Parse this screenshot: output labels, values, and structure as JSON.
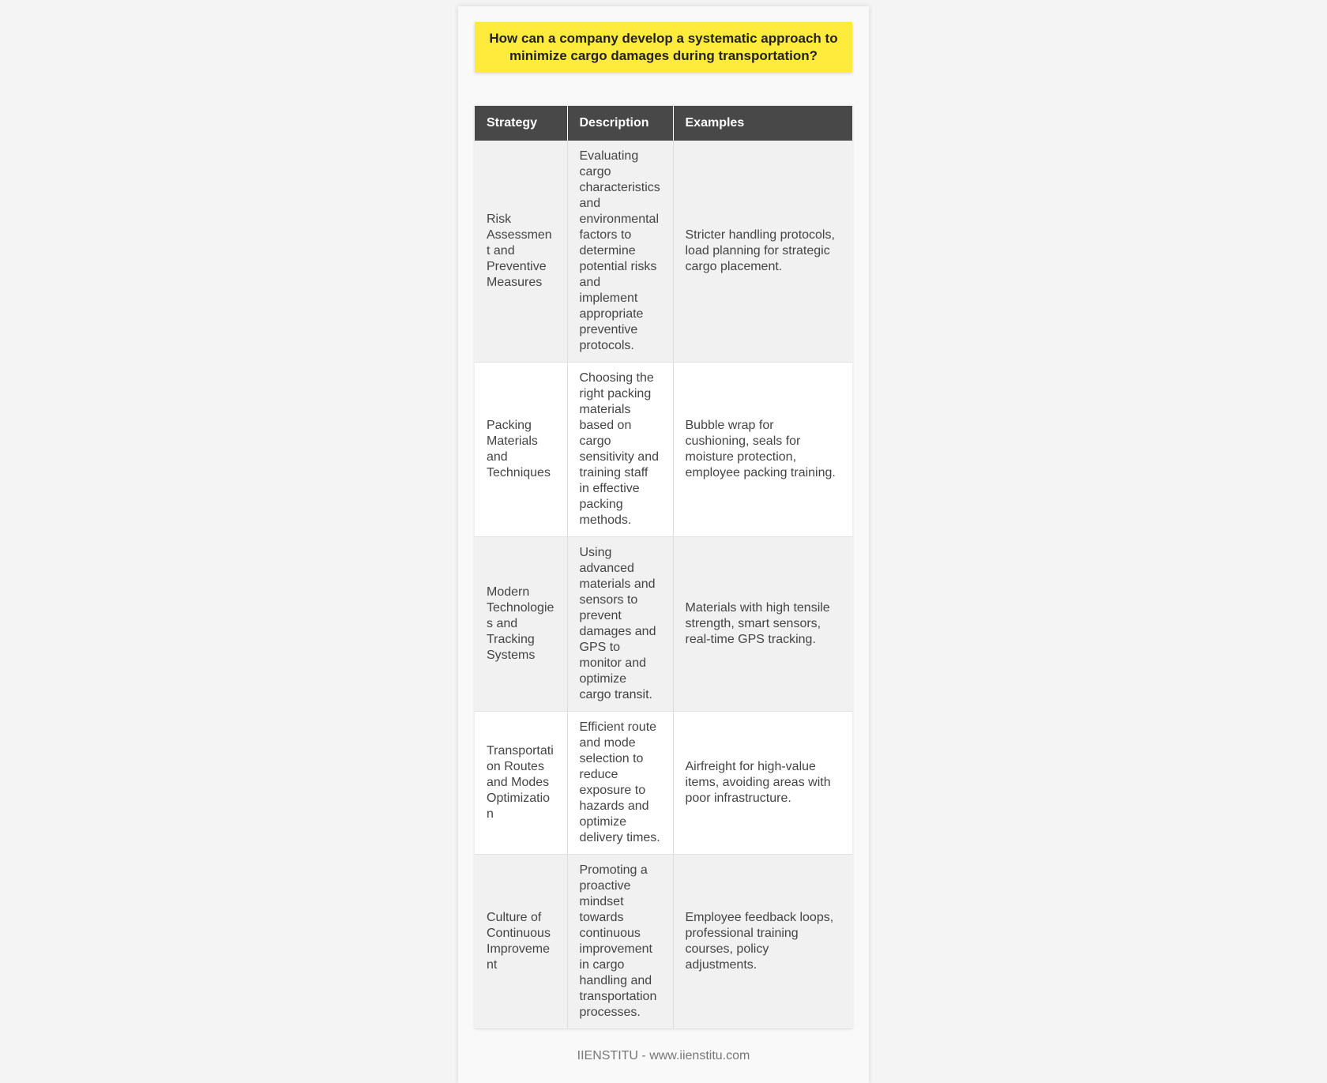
{
  "title": "How can a company develop a systematic approach to minimize cargo damages during transportation?",
  "table": {
    "headers": [
      "Strategy",
      "Description",
      "Examples"
    ],
    "rows": [
      {
        "strategy": "Risk Assessment and Preventive Measures",
        "description": "Evaluating cargo characteristics and environmental factors to determine potential risks and implement appropriate preventive protocols.",
        "examples": "Stricter handling protocols, load planning for strategic cargo placement."
      },
      {
        "strategy": "Packing Materials and Techniques",
        "description": "Choosing the right packing materials based on cargo sensitivity and training staff in effective packing methods.",
        "examples": "Bubble wrap for cushioning, seals for moisture protection, employee packing training."
      },
      {
        "strategy": "Modern Technologies and Tracking Systems",
        "description": "Using advanced materials and sensors to prevent damages and GPS to monitor and optimize cargo transit.",
        "examples": "Materials with high tensile strength, smart sensors, real-time GPS tracking."
      },
      {
        "strategy": "Transportation Routes and Modes Optimization",
        "description": "Efficient route and mode selection to reduce exposure to hazards and optimize delivery times.",
        "examples": "Airfreight for high-value items, avoiding areas with poor infrastructure."
      },
      {
        "strategy": "Culture of Continuous Improvement",
        "description": "Promoting a proactive mindset towards continuous improvement in cargo handling and transportation processes.",
        "examples": "Employee feedback loops, professional training courses, policy adjustments."
      }
    ]
  },
  "footer": "IIENSTITU - www.iienstitu.com",
  "colors": {
    "title_bg": "#ffeb3b",
    "header_bg": "#484848"
  }
}
